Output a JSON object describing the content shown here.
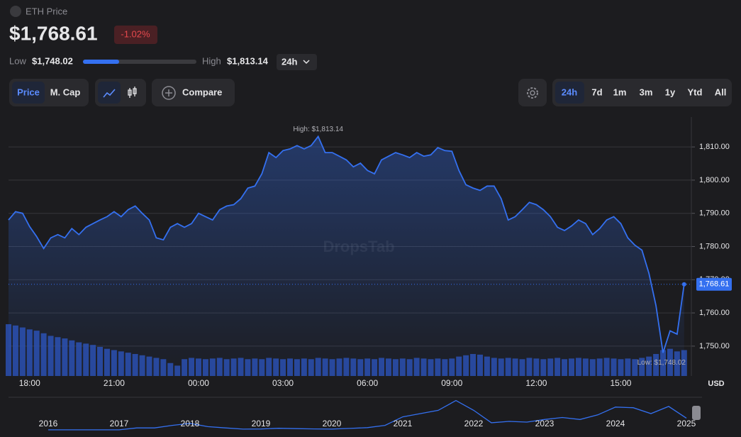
{
  "header": {
    "title": "ETH Price",
    "price": "$1,768.61",
    "change": "-1.02%",
    "low_label": "Low",
    "low": "$1,748.02",
    "high_label": "High",
    "high": "$1,813.14",
    "range": "24h"
  },
  "toolbar": {
    "metrics": [
      "Price",
      "M. Cap"
    ],
    "compare": "Compare",
    "ranges": [
      "24h",
      "7d",
      "1m",
      "3m",
      "1y",
      "Ytd",
      "All"
    ]
  },
  "chart_data": {
    "type": "line",
    "categories": [
      null,
      null,
      null,
      "18:00",
      null,
      null,
      null,
      null,
      null,
      null,
      null,
      null,
      null,
      null,
      null,
      "21:00",
      null,
      null,
      null,
      null,
      null,
      null,
      null,
      null,
      null,
      null,
      null,
      "00:00",
      null,
      null,
      null,
      null,
      null,
      null,
      null,
      null,
      null,
      null,
      null,
      "03:00",
      null,
      null,
      null,
      null,
      null,
      null,
      null,
      null,
      null,
      null,
      null,
      "06:00",
      null,
      null,
      null,
      null,
      null,
      null,
      null,
      null,
      null,
      null,
      null,
      "09:00",
      null,
      null,
      null,
      null,
      null,
      null,
      null,
      null,
      null,
      null,
      null,
      "12:00",
      null,
      null,
      null,
      null,
      null,
      null,
      null,
      null,
      null,
      null,
      null,
      "15:00",
      null,
      null,
      null,
      null,
      null,
      null,
      null,
      null,
      null
    ],
    "series": [
      {
        "color": "#3470f0",
        "values": [
          1788,
          1790.5,
          1790,
          1786,
          1783,
          1779.4,
          1782.6,
          1783.6,
          1782.6,
          1785.4,
          1783.6,
          1785.8,
          1786.9,
          1788,
          1789,
          1790.5,
          1789,
          1791.1,
          1792.2,
          1790,
          1788,
          1782.6,
          1782,
          1785.8,
          1786.9,
          1785.8,
          1786.9,
          1790,
          1789,
          1788,
          1791.1,
          1792.2,
          1792.6,
          1794.4,
          1797.6,
          1798.2,
          1801.9,
          1808.3,
          1806.8,
          1808.9,
          1809.4,
          1810.4,
          1809.4,
          1810.4,
          1813.14,
          1808.3,
          1808.3,
          1807.2,
          1806.1,
          1804,
          1805.1,
          1802.9,
          1801.9,
          1806.1,
          1807.2,
          1808.3,
          1807.6,
          1806.8,
          1808.3,
          1807.2,
          1807.6,
          1809.8,
          1808.9,
          1808.7,
          1802.9,
          1798.6,
          1797.6,
          1796.9,
          1798.2,
          1798.2,
          1794.4,
          1788,
          1789,
          1791.1,
          1793.3,
          1792.6,
          1791.1,
          1789,
          1785.8,
          1784.8,
          1786.2,
          1788,
          1786.9,
          1783.6,
          1785.4,
          1788,
          1789,
          1786.9,
          1782.6,
          1780.4,
          1778.9,
          1771.9,
          1762.2,
          1748.02,
          1754.6,
          1753.6,
          1768.61
        ]
      },
      {
        "color": "#2a4fb0",
        "axis": "y2",
        "values": [
          80,
          78,
          75,
          72,
          70,
          66,
          62,
          60,
          58,
          55,
          52,
          50,
          48,
          45,
          42,
          40,
          38,
          36,
          34,
          32,
          30,
          28,
          26,
          20,
          16,
          26,
          28,
          27,
          26,
          27,
          28,
          26,
          27,
          28,
          26,
          27,
          26,
          28,
          27,
          26,
          27,
          26,
          27,
          26,
          28,
          27,
          26,
          27,
          28,
          27,
          26,
          27,
          26,
          28,
          27,
          26,
          27,
          26,
          28,
          27,
          26,
          27,
          26,
          27,
          30,
          32,
          34,
          33,
          30,
          28,
          27,
          28,
          27,
          26,
          28,
          27,
          26,
          27,
          28,
          26,
          27,
          28,
          27,
          26,
          27,
          28,
          27,
          26,
          27,
          26,
          28,
          30,
          34,
          40,
          42,
          38,
          40
        ]
      }
    ],
    "ylim": [
      1741,
      1819
    ],
    "yticks": [
      {
        "value": 1750,
        "label": "1,750.00"
      },
      {
        "value": 1760,
        "label": "1,760.00"
      },
      {
        "value": 1770,
        "label": "1,770.00"
      },
      {
        "value": 1780,
        "label": "1,780.00"
      },
      {
        "value": 1790,
        "label": "1,790.00"
      },
      {
        "value": 1800,
        "label": "1,800.00"
      },
      {
        "value": 1810,
        "label": "1,810.00"
      }
    ],
    "y2lim": [
      0,
      400
    ],
    "grid": true,
    "high_annotation": "High: $1,813.14",
    "low_annotation": "Low: $1,748.02",
    "current_label": "1,768.61",
    "unit": "USD",
    "watermark": "DropsTab"
  },
  "navigator": {
    "type": "line",
    "color": "#3470f0",
    "categories": [
      "2016",
      null,
      null,
      null,
      "2017",
      null,
      null,
      null,
      "2018",
      null,
      null,
      null,
      "2019",
      null,
      null,
      null,
      "2020",
      null,
      null,
      null,
      "2021",
      null,
      null,
      null,
      "2022",
      null,
      null,
      null,
      "2023",
      null,
      null,
      null,
      "2024",
      null,
      null,
      null,
      "2025"
    ],
    "values": [
      10,
      12,
      11,
      8,
      15,
      300,
      300,
      700,
      1000,
      500,
      300,
      120,
      140,
      250,
      200,
      150,
      130,
      230,
      350,
      700,
      2000,
      2500,
      3000,
      4500,
      3000,
      1100,
      1300,
      1200,
      1600,
      1900,
      1600,
      2300,
      3500,
      3400,
      2500,
      3600,
      1800
    ],
    "ylim": [
      0,
      5000
    ]
  }
}
